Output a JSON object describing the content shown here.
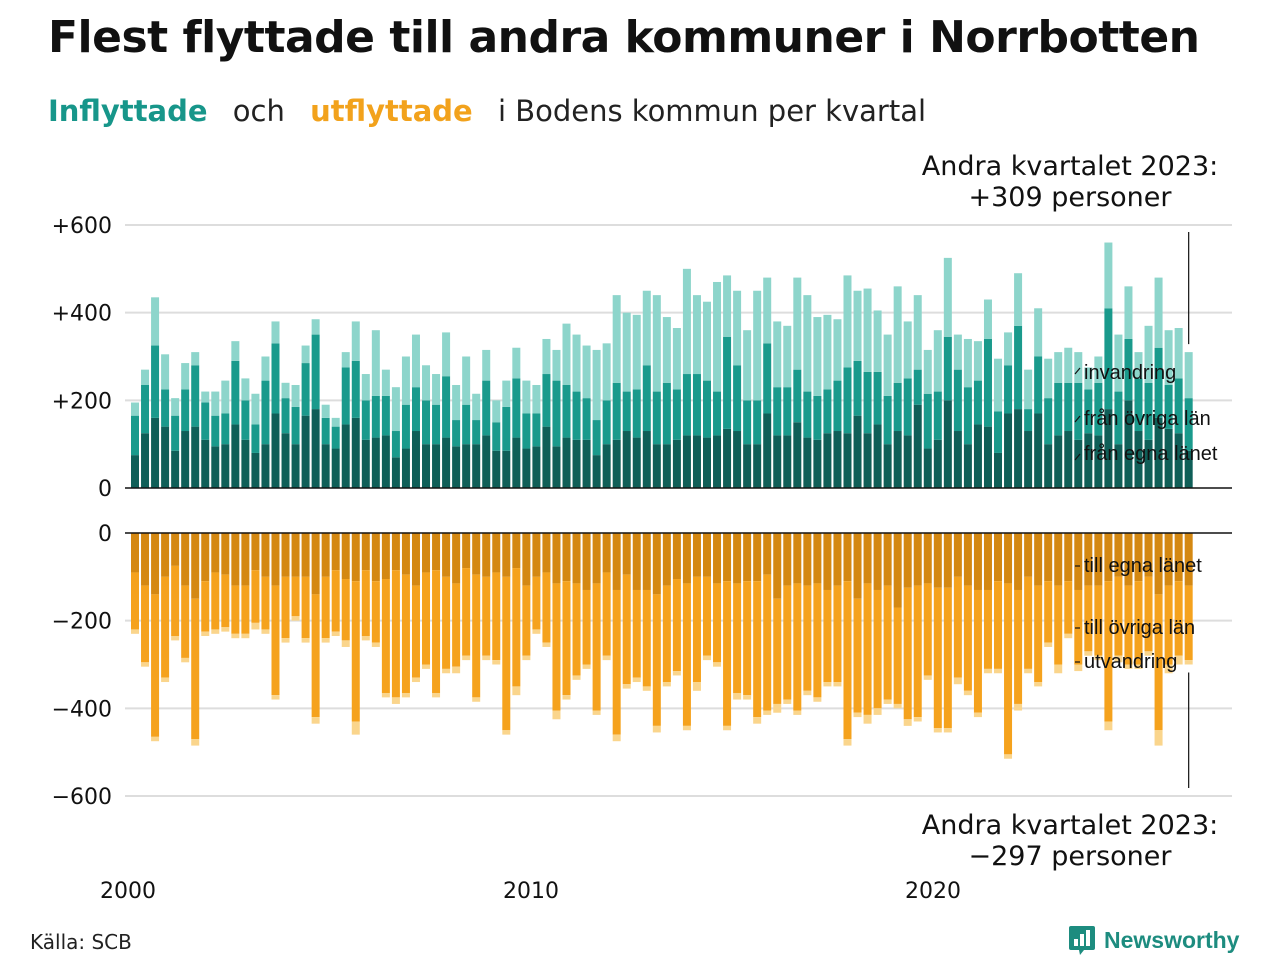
{
  "title": "Flest flyttade till andra kommuner i Norrbotten",
  "subtitle": {
    "part1": "Inflyttade",
    "part2": "och",
    "part3": "utflyttade",
    "part4": "i Bodens kommun per kvartal"
  },
  "source": "Källa: SCB",
  "logo": {
    "text": "Newsworthy",
    "icon": "bar-chart-logo-icon"
  },
  "colors": {
    "in_egna": "#0f5f58",
    "in_ovriga": "#1a9a8c",
    "in_invandring": "#8dd5cb",
    "out_egna": "#d48812",
    "out_ovriga": "#f5a21d",
    "out_utvandring": "#fad58c",
    "grid": "#dddddd",
    "axis": "#111111"
  },
  "chart_data": {
    "type": "bar",
    "x_tick_labels": [
      "2000",
      "2010",
      "2020"
    ],
    "annotations": {
      "top_line1": "Andra kvartalet 2023:",
      "top_line2": "+309 personer",
      "bottom_line1": "Andra kvartalet 2023:",
      "bottom_line2": "−297 personer"
    },
    "in_panel": {
      "y_ticks": [
        0,
        200,
        400,
        600
      ],
      "y_tick_labels": [
        "0",
        "+200",
        "+400",
        "+600"
      ],
      "ylim": [
        0,
        600
      ],
      "series_labels": [
        "från egna länet",
        "från övriga län",
        "invandring"
      ],
      "egna": [
        75,
        125,
        160,
        140,
        85,
        130,
        140,
        110,
        95,
        100,
        145,
        110,
        80,
        100,
        170,
        125,
        100,
        165,
        180,
        100,
        90,
        145,
        160,
        110,
        115,
        120,
        70,
        90,
        130,
        100,
        100,
        115,
        95,
        100,
        100,
        120,
        85,
        85,
        115,
        90,
        95,
        140,
        95,
        115,
        110,
        110,
        75,
        100,
        110,
        130,
        115,
        130,
        100,
        100,
        110,
        120,
        120,
        115,
        120,
        135,
        130,
        100,
        100,
        170,
        120,
        120,
        150,
        115,
        110,
        125,
        130,
        125,
        165,
        125,
        145,
        100,
        130,
        120,
        190,
        90,
        110,
        200,
        130,
        100,
        145,
        140,
        80,
        170,
        180,
        130,
        170,
        100,
        120,
        130,
        110,
        125,
        120,
        180,
        100,
        200,
        130,
        110,
        160,
        135,
        125,
        85
      ],
      "ovriga": [
        90,
        110,
        165,
        85,
        80,
        95,
        140,
        85,
        70,
        70,
        145,
        90,
        65,
        145,
        160,
        80,
        85,
        120,
        170,
        60,
        50,
        130,
        130,
        90,
        95,
        90,
        60,
        100,
        100,
        100,
        90,
        140,
        60,
        90,
        55,
        125,
        65,
        100,
        135,
        80,
        75,
        120,
        150,
        120,
        110,
        95,
        80,
        100,
        130,
        90,
        110,
        150,
        120,
        140,
        115,
        140,
        140,
        130,
        100,
        210,
        150,
        100,
        100,
        160,
        110,
        110,
        120,
        105,
        100,
        100,
        115,
        150,
        125,
        140,
        120,
        110,
        110,
        130,
        80,
        125,
        110,
        145,
        140,
        130,
        100,
        200,
        95,
        110,
        190,
        50,
        130,
        105,
        120,
        110,
        130,
        100,
        120,
        230,
        120,
        140,
        120,
        130,
        160,
        100,
        125,
        120
      ],
      "invandring": [
        30,
        35,
        110,
        80,
        40,
        60,
        30,
        25,
        55,
        75,
        45,
        50,
        70,
        55,
        50,
        35,
        50,
        40,
        35,
        30,
        20,
        35,
        90,
        60,
        150,
        60,
        100,
        110,
        120,
        80,
        70,
        100,
        80,
        110,
        60,
        70,
        50,
        60,
        70,
        75,
        65,
        80,
        70,
        140,
        130,
        120,
        160,
        130,
        200,
        180,
        170,
        170,
        220,
        150,
        140,
        240,
        180,
        180,
        250,
        140,
        170,
        160,
        250,
        150,
        150,
        140,
        210,
        220,
        180,
        170,
        140,
        210,
        160,
        190,
        140,
        140,
        220,
        130,
        170,
        100,
        140,
        180,
        80,
        110,
        90,
        90,
        120,
        75,
        120,
        90,
        110,
        90,
        70,
        80,
        70,
        50,
        60,
        150,
        130,
        120,
        60,
        130,
        160,
        125,
        115,
        105
      ]
    },
    "out_panel": {
      "y_ticks": [
        0,
        -200,
        -400,
        -600
      ],
      "y_tick_labels": [
        "0",
        "−200",
        "−400",
        "−600"
      ],
      "ylim": [
        -600,
        0
      ],
      "series_labels": [
        "till egna länet",
        "till övriga län",
        "utvandring"
      ],
      "egna": [
        90,
        120,
        140,
        100,
        75,
        120,
        150,
        110,
        90,
        95,
        120,
        120,
        85,
        100,
        120,
        100,
        100,
        100,
        140,
        100,
        85,
        105,
        110,
        85,
        110,
        105,
        85,
        95,
        120,
        90,
        85,
        100,
        115,
        80,
        95,
        100,
        90,
        100,
        80,
        120,
        100,
        90,
        115,
        110,
        115,
        130,
        115,
        90,
        130,
        95,
        130,
        130,
        140,
        120,
        105,
        115,
        100,
        100,
        115,
        110,
        115,
        110,
        110,
        95,
        150,
        120,
        115,
        120,
        115,
        130,
        120,
        110,
        150,
        115,
        130,
        120,
        170,
        125,
        120,
        115,
        125,
        125,
        100,
        120,
        130,
        130,
        110,
        115,
        130,
        100,
        120,
        110,
        120,
        110,
        130,
        120,
        120,
        110,
        100,
        120,
        110,
        100,
        140,
        120,
        110,
        120
      ],
      "ovriga": [
        130,
        175,
        325,
        230,
        160,
        165,
        320,
        115,
        130,
        120,
        110,
        110,
        120,
        120,
        250,
        140,
        90,
        140,
        280,
        140,
        140,
        140,
        320,
        150,
        140,
        260,
        290,
        270,
        210,
        210,
        280,
        210,
        190,
        200,
        280,
        180,
        200,
        350,
        270,
        160,
        120,
        160,
        290,
        260,
        210,
        170,
        290,
        190,
        330,
        250,
        200,
        220,
        300,
        220,
        210,
        325,
        240,
        180,
        180,
        330,
        250,
        260,
        310,
        310,
        240,
        260,
        290,
        240,
        260,
        210,
        220,
        360,
        260,
        300,
        270,
        260,
        220,
        300,
        300,
        210,
        320,
        320,
        230,
        240,
        280,
        180,
        200,
        390,
        260,
        210,
        220,
        140,
        180,
        120,
        170,
        150,
        160,
        320,
        180,
        180,
        190,
        170,
        310,
        180,
        170,
        170
      ],
      "utvandring": [
        10,
        10,
        10,
        10,
        10,
        10,
        15,
        10,
        10,
        10,
        10,
        10,
        15,
        10,
        10,
        10,
        10,
        10,
        15,
        10,
        10,
        15,
        30,
        10,
        10,
        10,
        15,
        10,
        10,
        10,
        10,
        10,
        15,
        10,
        10,
        10,
        10,
        10,
        20,
        10,
        10,
        10,
        20,
        10,
        10,
        10,
        10,
        10,
        15,
        10,
        10,
        10,
        15,
        10,
        10,
        10,
        20,
        10,
        10,
        10,
        15,
        10,
        15,
        10,
        20,
        10,
        10,
        10,
        10,
        10,
        10,
        15,
        10,
        20,
        15,
        10,
        10,
        15,
        10,
        10,
        10,
        10,
        15,
        10,
        10,
        10,
        10,
        10,
        15,
        10,
        10,
        10,
        20,
        10,
        15,
        10,
        10,
        20,
        15,
        10,
        10,
        10,
        35,
        20,
        20,
        10
      ]
    }
  }
}
